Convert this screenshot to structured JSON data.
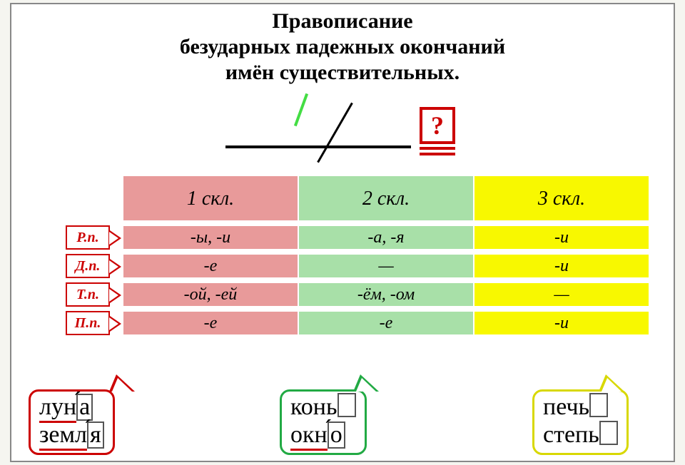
{
  "title_line1": "Правописание",
  "title_line2": "безударных падежных окончаний",
  "title_line3": "имён существительных.",
  "question_mark": "?",
  "headers": {
    "h1": "1 скл.",
    "h2": "2 скл.",
    "h3": "3 скл."
  },
  "cases": {
    "r": "Р.п.",
    "d": "Д.п.",
    "t": "Т.п.",
    "p": "П.п."
  },
  "cells": {
    "r1": "-ы, -и",
    "r2": "-а, -я",
    "r3": "-и",
    "d1": "-е",
    "d2": "—",
    "d3": "-и",
    "t1": "-ой, -ей",
    "t2": "-ём, -ом",
    "t3": "—",
    "p1": "-е",
    "p2": "-е",
    "p3": "-и"
  },
  "examples": {
    "c1w1_stem": "лун",
    "c1w1_end": "а",
    "c1w2_stem": "земл",
    "c1w2_end": "я",
    "c2w1_stem": "конь",
    "c2w2_stem": "окн",
    "c2w2_end": "о",
    "c3w1_stem": "печь",
    "c3w2_stem": "степь"
  },
  "colors": {
    "col1": "#e89a9a",
    "col2": "#a8e0a8",
    "col3": "#f8f800",
    "red": "#cc0000",
    "green": "#22aa44",
    "yellow": "#d8d800"
  }
}
